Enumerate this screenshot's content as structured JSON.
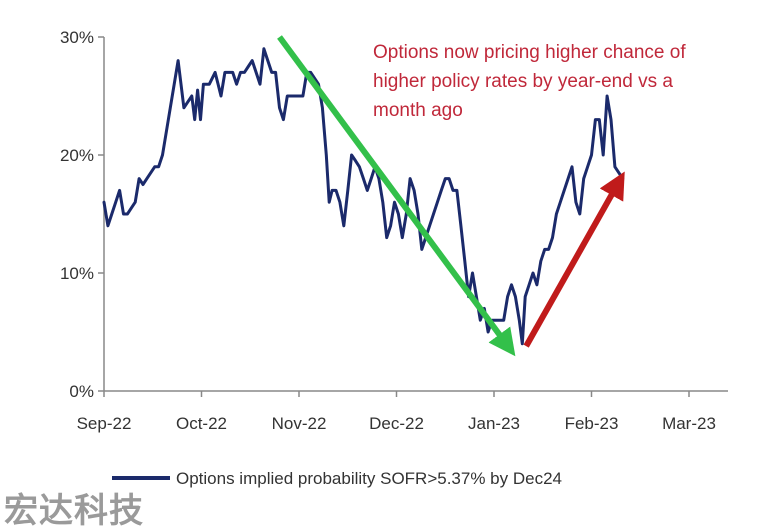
{
  "chart_data": {
    "type": "line",
    "title": "",
    "xlabel": "",
    "ylabel": "",
    "ylim": [
      0,
      30
    ],
    "y_ticks": [
      {
        "value": 0,
        "label": "0%"
      },
      {
        "value": 10,
        "label": "10%"
      },
      {
        "value": 20,
        "label": "20%"
      },
      {
        "value": 30,
        "label": "30%"
      }
    ],
    "x_ticks": [
      {
        "value": 0,
        "label": "Sep-22"
      },
      {
        "value": 1,
        "label": "Oct-22"
      },
      {
        "value": 2,
        "label": "Nov-22"
      },
      {
        "value": 3,
        "label": "Dec-22"
      },
      {
        "value": 4,
        "label": "Jan-23"
      },
      {
        "value": 5,
        "label": "Feb-23"
      },
      {
        "value": 6,
        "label": "Mar-23"
      }
    ],
    "xlim": [
      0,
      6.4
    ],
    "grid": false,
    "legend_position": "bottom",
    "series": [
      {
        "name": "Options implied probability SOFR>5.37% by Dec24",
        "color": "#1b2a6b",
        "points": [
          [
            0.0,
            16
          ],
          [
            0.04,
            14
          ],
          [
            0.08,
            15
          ],
          [
            0.12,
            16
          ],
          [
            0.16,
            17
          ],
          [
            0.2,
            15
          ],
          [
            0.24,
            15
          ],
          [
            0.28,
            15.5
          ],
          [
            0.32,
            16
          ],
          [
            0.36,
            18
          ],
          [
            0.4,
            17.5
          ],
          [
            0.44,
            18
          ],
          [
            0.48,
            18.5
          ],
          [
            0.52,
            19
          ],
          [
            0.56,
            19
          ],
          [
            0.6,
            20
          ],
          [
            0.64,
            22
          ],
          [
            0.68,
            24
          ],
          [
            0.72,
            26
          ],
          [
            0.76,
            28
          ],
          [
            0.79,
            26
          ],
          [
            0.82,
            24
          ],
          [
            0.86,
            24.5
          ],
          [
            0.9,
            25
          ],
          [
            0.93,
            23
          ],
          [
            0.96,
            25.5
          ],
          [
            0.99,
            23
          ],
          [
            1.02,
            26
          ],
          [
            1.05,
            26
          ],
          [
            1.08,
            26
          ],
          [
            1.11,
            26.5
          ],
          [
            1.14,
            27
          ],
          [
            1.17,
            26
          ],
          [
            1.2,
            25
          ],
          [
            1.24,
            27
          ],
          [
            1.28,
            27
          ],
          [
            1.32,
            27
          ],
          [
            1.36,
            26
          ],
          [
            1.4,
            27
          ],
          [
            1.44,
            27
          ],
          [
            1.48,
            27.5
          ],
          [
            1.52,
            28
          ],
          [
            1.56,
            27
          ],
          [
            1.6,
            26
          ],
          [
            1.64,
            29
          ],
          [
            1.68,
            28
          ],
          [
            1.72,
            27
          ],
          [
            1.76,
            27
          ],
          [
            1.8,
            24
          ],
          [
            1.84,
            23
          ],
          [
            1.88,
            25
          ],
          [
            1.92,
            25
          ],
          [
            1.96,
            25
          ],
          [
            2.0,
            25
          ],
          [
            2.04,
            25
          ],
          [
            2.08,
            27
          ],
          [
            2.12,
            27
          ],
          [
            2.16,
            26.5
          ],
          [
            2.2,
            26
          ],
          [
            2.24,
            24
          ],
          [
            2.28,
            20
          ],
          [
            2.31,
            16
          ],
          [
            2.34,
            17
          ],
          [
            2.38,
            17
          ],
          [
            2.42,
            16
          ],
          [
            2.46,
            14
          ],
          [
            2.5,
            17
          ],
          [
            2.54,
            20
          ],
          [
            2.58,
            19.5
          ],
          [
            2.62,
            19
          ],
          [
            2.66,
            18
          ],
          [
            2.7,
            17
          ],
          [
            2.74,
            18
          ],
          [
            2.78,
            19
          ],
          [
            2.82,
            18
          ],
          [
            2.86,
            16
          ],
          [
            2.9,
            13
          ],
          [
            2.94,
            14
          ],
          [
            2.98,
            16
          ],
          [
            3.02,
            15
          ],
          [
            3.06,
            13
          ],
          [
            3.1,
            15
          ],
          [
            3.14,
            18
          ],
          [
            3.18,
            17
          ],
          [
            3.22,
            15
          ],
          [
            3.26,
            12
          ],
          [
            3.3,
            13
          ],
          [
            3.34,
            14
          ],
          [
            3.38,
            15
          ],
          [
            3.42,
            16
          ],
          [
            3.46,
            17
          ],
          [
            3.5,
            18
          ],
          [
            3.54,
            18
          ],
          [
            3.58,
            17
          ],
          [
            3.62,
            17
          ],
          [
            3.66,
            14
          ],
          [
            3.7,
            11
          ],
          [
            3.74,
            8
          ],
          [
            3.78,
            10
          ],
          [
            3.82,
            8
          ],
          [
            3.86,
            6
          ],
          [
            3.9,
            7
          ],
          [
            3.94,
            5
          ],
          [
            3.98,
            6
          ],
          [
            4.02,
            6
          ],
          [
            4.06,
            6
          ],
          [
            4.1,
            6
          ],
          [
            4.14,
            8
          ],
          [
            4.18,
            9
          ],
          [
            4.22,
            8
          ],
          [
            4.26,
            6
          ],
          [
            4.29,
            4
          ],
          [
            4.32,
            8
          ],
          [
            4.36,
            9
          ],
          [
            4.4,
            10
          ],
          [
            4.44,
            9
          ],
          [
            4.48,
            11
          ],
          [
            4.52,
            12
          ],
          [
            4.56,
            12
          ],
          [
            4.6,
            13
          ],
          [
            4.64,
            15
          ],
          [
            4.68,
            16
          ],
          [
            4.72,
            17
          ],
          [
            4.76,
            18
          ],
          [
            4.8,
            19
          ],
          [
            4.84,
            16
          ],
          [
            4.88,
            15
          ],
          [
            4.92,
            18
          ],
          [
            4.96,
            19
          ],
          [
            5.0,
            20
          ],
          [
            5.04,
            23
          ],
          [
            5.08,
            23
          ],
          [
            5.12,
            20
          ],
          [
            5.16,
            25
          ],
          [
            5.2,
            23
          ],
          [
            5.24,
            19
          ],
          [
            5.28,
            18.5
          ],
          [
            5.32,
            18
          ]
        ]
      }
    ],
    "annotations": [
      {
        "type": "arrow",
        "color": "#33c04a",
        "from": [
          1.8,
          30
        ],
        "to": [
          4.17,
          3.5
        ]
      },
      {
        "type": "arrow",
        "color": "#c01b1b",
        "from": [
          4.33,
          3.8
        ],
        "to": [
          5.3,
          18
        ]
      },
      {
        "type": "text",
        "color": "#c0283a",
        "lines": [
          "Options now pricing higher chance of",
          "higher policy rates by year-end vs a",
          "month ago"
        ]
      }
    ]
  },
  "watermark": "宏达科技"
}
